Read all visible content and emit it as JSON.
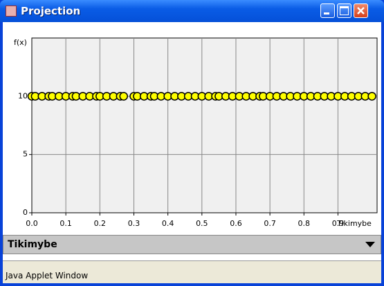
{
  "window": {
    "title": "Projection"
  },
  "chart_data": {
    "type": "scatter",
    "x_label": "Tikimybe",
    "y_label": "f(x)",
    "x": [
      0.0,
      0.01,
      0.03,
      0.05,
      0.06,
      0.08,
      0.1,
      0.12,
      0.13,
      0.15,
      0.17,
      0.19,
      0.2,
      0.22,
      0.24,
      0.26,
      0.27,
      0.3,
      0.31,
      0.33,
      0.35,
      0.36,
      0.38,
      0.4,
      0.42,
      0.44,
      0.46,
      0.48,
      0.5,
      0.52,
      0.54,
      0.55,
      0.57,
      0.59,
      0.61,
      0.63,
      0.65,
      0.67,
      0.68,
      0.7,
      0.72,
      0.74,
      0.76,
      0.78,
      0.8,
      0.82,
      0.84,
      0.86,
      0.88,
      0.9,
      0.92,
      0.94,
      0.96,
      0.98,
      1.0
    ],
    "values": [
      10,
      10,
      10,
      10,
      10,
      10,
      10,
      10,
      10,
      10,
      10,
      10,
      10,
      10,
      10,
      10,
      10,
      10,
      10,
      10,
      10,
      10,
      10,
      10,
      10,
      10,
      10,
      10,
      10,
      10,
      10,
      10,
      10,
      10,
      10,
      10,
      10,
      10,
      10,
      10,
      10,
      10,
      10,
      10,
      10,
      10,
      10,
      10,
      10,
      10,
      10,
      10,
      10,
      10,
      10
    ],
    "color": "#ffff00",
    "xlim": [
      0,
      1.015
    ],
    "ylim": [
      0,
      15
    ],
    "xticks": [
      {
        "value": 0,
        "label": "0.0"
      },
      {
        "value": 0.1,
        "label": "0.1"
      },
      {
        "value": 0.2,
        "label": "0.2"
      },
      {
        "value": 0.3,
        "label": "0.3"
      },
      {
        "value": 0.4,
        "label": "0.4"
      },
      {
        "value": 0.5,
        "label": "0.5"
      },
      {
        "value": 0.6,
        "label": "0.6"
      },
      {
        "value": 0.7,
        "label": "0.7"
      },
      {
        "value": 0.8,
        "label": "0.8"
      },
      {
        "value": 0.9,
        "label": "0.9"
      }
    ],
    "yticks": [
      0,
      5,
      10
    ],
    "grid": true
  },
  "dropdown": {
    "selected": "Tikimybe"
  },
  "status": {
    "text": "Java Applet Window"
  }
}
